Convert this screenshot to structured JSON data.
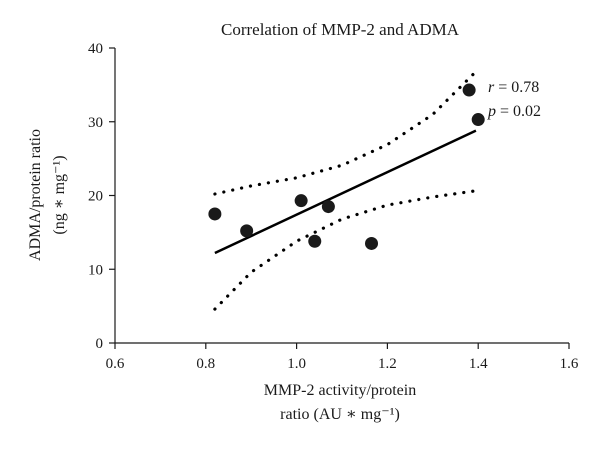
{
  "chart_data": {
    "type": "scatter",
    "title": "Correlation of MMP-2 and ADMA",
    "xlabel": [
      "MMP-2 activity/protein",
      "ratio (AU ∗ mg⁻¹)"
    ],
    "ylabel": [
      "ADMA/protein ratio",
      "(ng ∗ mg⁻¹)"
    ],
    "xlim": [
      0.6,
      1.6
    ],
    "ylim": [
      0,
      40
    ],
    "xticks": [
      "0.6",
      "0.8",
      "1.0",
      "1.2",
      "1.4",
      "1.6"
    ],
    "yticks": [
      "0",
      "10",
      "20",
      "30",
      "40"
    ],
    "grid": false,
    "points": [
      {
        "x": 0.82,
        "y": 17.5
      },
      {
        "x": 0.89,
        "y": 15.2
      },
      {
        "x": 1.01,
        "y": 19.3
      },
      {
        "x": 1.04,
        "y": 13.8
      },
      {
        "x": 1.07,
        "y": 18.5
      },
      {
        "x": 1.165,
        "y": 13.5
      },
      {
        "x": 1.38,
        "y": 34.3
      },
      {
        "x": 1.4,
        "y": 30.3
      }
    ],
    "regression": {
      "x": [
        0.82,
        1.395
      ],
      "y": [
        12.2,
        28.8
      ]
    },
    "confidence_upper": {
      "x": [
        0.82,
        0.9,
        1.0,
        1.1,
        1.2,
        1.3,
        1.39
      ],
      "y": [
        20.2,
        21.3,
        22.4,
        24.1,
        26.9,
        31.0,
        36.5
      ]
    },
    "confidence_lower": {
      "x": [
        0.82,
        0.9,
        1.0,
        1.1,
        1.2,
        1.3,
        1.39
      ],
      "y": [
        4.6,
        9.6,
        13.8,
        16.8,
        18.7,
        19.8,
        20.6
      ]
    },
    "annotations": [
      {
        "symbol": "r",
        "text": " = 0.78"
      },
      {
        "symbol": "p",
        "text": " = 0.02"
      }
    ]
  }
}
